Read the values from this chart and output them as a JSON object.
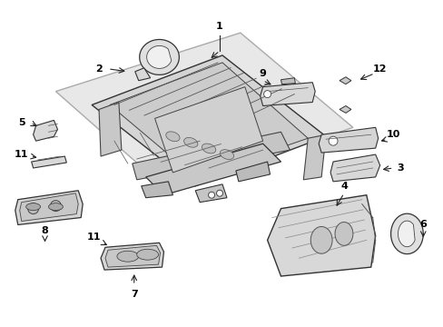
{
  "bg_color": "#ffffff",
  "fig_width": 4.89,
  "fig_height": 3.6,
  "dpi": 100,
  "line_color": "#333333",
  "fill_light": "#e8e8e8",
  "fill_mid": "#d0d0d0",
  "fill_dark": "#b0b0b0",
  "shadow_fill": "#d8d8d8",
  "shadow_edge": "#aaaaaa",
  "label_fontsize": 7.5
}
